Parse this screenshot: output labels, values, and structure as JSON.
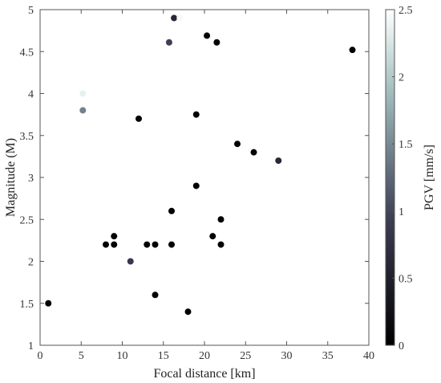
{
  "chart_data": {
    "type": "scatter",
    "xlabel": "Focal distance [km]",
    "ylabel": "Magnitude (M)",
    "xlim": [
      0,
      40
    ],
    "ylim": [
      1,
      5
    ],
    "xticks": [
      0,
      5,
      10,
      15,
      20,
      25,
      30,
      35,
      40
    ],
    "yticks": [
      1,
      1.5,
      2,
      2.5,
      3,
      3.5,
      4,
      4.5,
      5
    ],
    "xtick_labels": [
      "0",
      "5",
      "10",
      "15",
      "20",
      "25",
      "30",
      "35",
      "40"
    ],
    "ytick_labels": [
      "1",
      "1.5",
      "2",
      "2.5",
      "3",
      "3.5",
      "4",
      "4.5",
      "5"
    ],
    "colorbar": {
      "label": "PGV [mm/s]",
      "range": [
        0,
        2.5
      ],
      "ticks": [
        0,
        0.5,
        1,
        1.5,
        2,
        2.5
      ],
      "tick_labels": [
        "0",
        "0.5",
        "1",
        "1.5",
        "2",
        "2.5"
      ],
      "colormap": "bone"
    },
    "grid": false,
    "points": [
      {
        "x": 1,
        "y": 1.5,
        "pgv": 0.05
      },
      {
        "x": 5.2,
        "y": 4.0,
        "pgv": 2.35
      },
      {
        "x": 5.2,
        "y": 3.8,
        "pgv": 1.45
      },
      {
        "x": 8,
        "y": 2.2,
        "pgv": 0.05
      },
      {
        "x": 9,
        "y": 2.3,
        "pgv": 0.05
      },
      {
        "x": 9,
        "y": 2.2,
        "pgv": 0.05
      },
      {
        "x": 11,
        "y": 2.0,
        "pgv": 0.85
      },
      {
        "x": 12,
        "y": 3.7,
        "pgv": 0.05
      },
      {
        "x": 13,
        "y": 2.2,
        "pgv": 0.05
      },
      {
        "x": 14,
        "y": 2.2,
        "pgv": 0.05
      },
      {
        "x": 14,
        "y": 1.6,
        "pgv": 0.05
      },
      {
        "x": 15.7,
        "y": 4.61,
        "pgv": 0.95
      },
      {
        "x": 16,
        "y": 2.6,
        "pgv": 0.05
      },
      {
        "x": 16,
        "y": 2.2,
        "pgv": 0.05
      },
      {
        "x": 16.3,
        "y": 4.9,
        "pgv": 0.6
      },
      {
        "x": 17,
        "y": 4.9,
        "pgv": 2.45
      },
      {
        "x": 18,
        "y": 1.4,
        "pgv": 0.05
      },
      {
        "x": 19,
        "y": 3.75,
        "pgv": 0.05
      },
      {
        "x": 19,
        "y": 2.9,
        "pgv": 0.05
      },
      {
        "x": 20.3,
        "y": 4.69,
        "pgv": 0.05
      },
      {
        "x": 21,
        "y": 2.3,
        "pgv": 0.05
      },
      {
        "x": 21.5,
        "y": 4.61,
        "pgv": 0.05
      },
      {
        "x": 22,
        "y": 2.5,
        "pgv": 0.05
      },
      {
        "x": 22,
        "y": 2.2,
        "pgv": 0.05
      },
      {
        "x": 24,
        "y": 3.4,
        "pgv": 0.05
      },
      {
        "x": 26,
        "y": 3.3,
        "pgv": 0.05
      },
      {
        "x": 29,
        "y": 3.2,
        "pgv": 0.6
      },
      {
        "x": 38,
        "y": 4.52,
        "pgv": 0.05
      }
    ]
  }
}
